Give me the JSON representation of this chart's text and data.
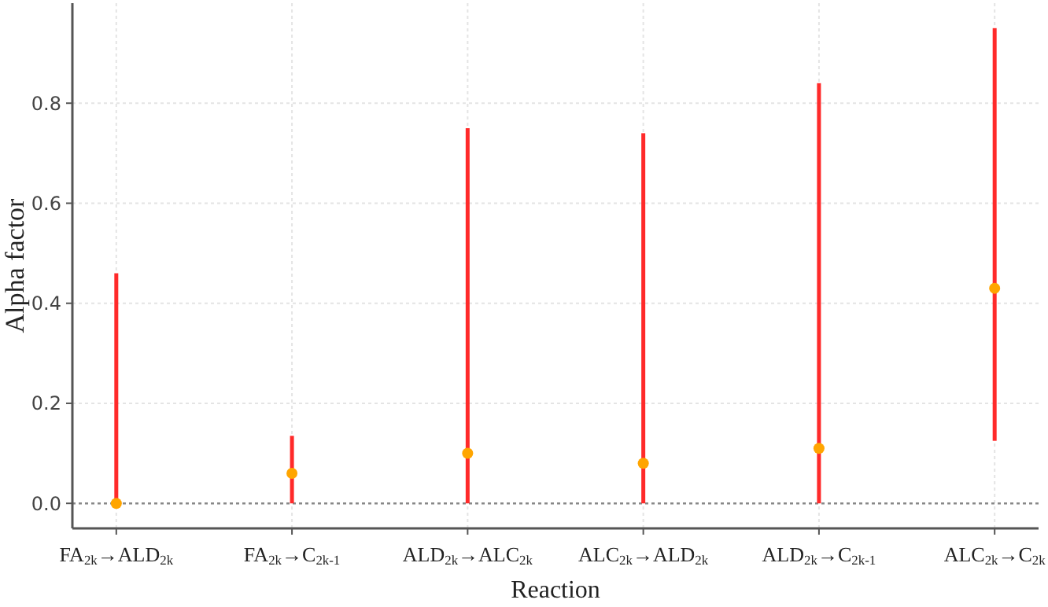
{
  "chart_data": {
    "type": "scatter",
    "xlabel": "Reaction",
    "ylabel": "Alpha factor",
    "categories": [
      "FA$_{2k}$→ALD$_{2k}$",
      "FA$_{2k}$→C$_{2k-1}$",
      "ALD$_{2k}$→ALC$_{2k}$",
      "ALC$_{2k}$→ALD$_{2k}$",
      "ALD$_{2k}$→C$_{2k-1}$",
      "ALC$_{2k}$→C$_{2k}$"
    ],
    "series": [
      {
        "color": "#ffa500",
        "values": [
          0,
          0.06,
          0.1,
          0.08,
          0.11,
          0.43
        ],
        "errors": [
          [
            0,
            0.46
          ],
          [
            0,
            0.135
          ],
          [
            0,
            0.75
          ],
          [
            0,
            0.74
          ],
          [
            0,
            0.84
          ],
          [
            0.125,
            0.95
          ]
        ]
      }
    ],
    "ylim": [
      -0.05,
      1.0
    ],
    "yticks": [
      {
        "value": 0,
        "label": "0.0"
      },
      0.2,
      0.4,
      0.6,
      0.8
    ],
    "ref_lines": [
      {
        "axis": "y",
        "value": 0,
        "color": "#888888",
        "line_style": "dotted"
      }
    ],
    "grid": true,
    "marker": "circle"
  }
}
